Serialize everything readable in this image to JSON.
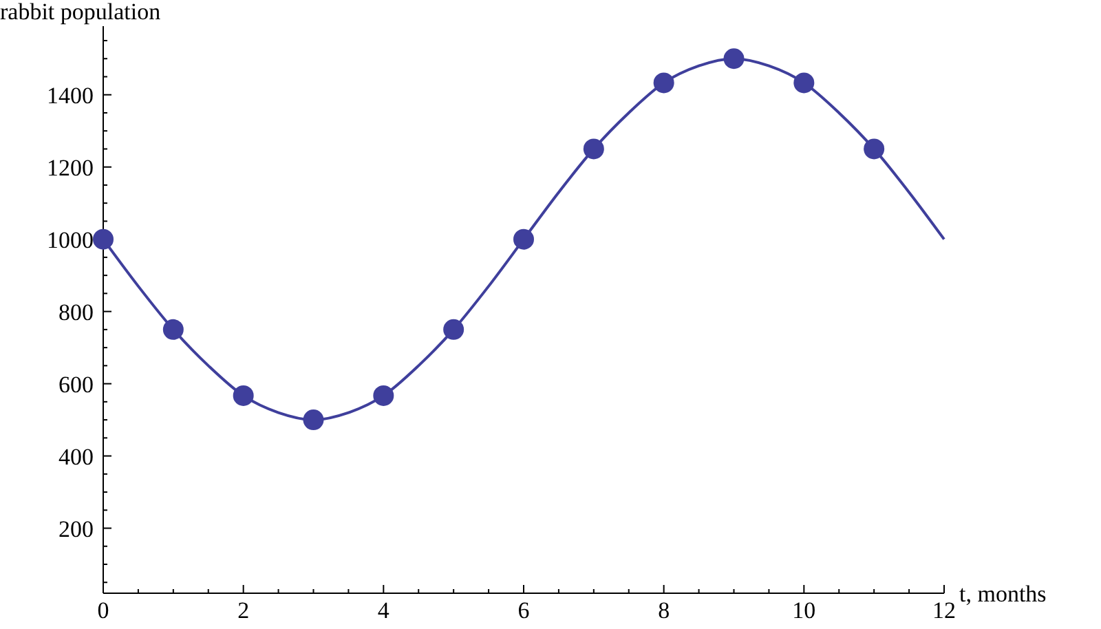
{
  "chart_data": {
    "type": "scatter",
    "xlabel": "t, months",
    "ylabel": "rabbit population",
    "xlim": [
      0,
      12
    ],
    "ylim": [
      20,
      1590
    ],
    "xticks": [
      0,
      {
        "value": 0.5,
        "label": null
      },
      {
        "value": 1,
        "label": null
      },
      {
        "value": 1.5,
        "label": null
      },
      2,
      {
        "value": 2.5,
        "label": null
      },
      {
        "value": 3,
        "label": null
      },
      {
        "value": 3.5,
        "label": null
      },
      4,
      {
        "value": 4.5,
        "label": null
      },
      {
        "value": 5,
        "label": null
      },
      {
        "value": 5.5,
        "label": null
      },
      6,
      {
        "value": 6.5,
        "label": null
      },
      {
        "value": 7,
        "label": null
      },
      {
        "value": 7.5,
        "label": null
      },
      8,
      {
        "value": 8.5,
        "label": null
      },
      {
        "value": 9,
        "label": null
      },
      {
        "value": 9.5,
        "label": null
      },
      10,
      {
        "value": 10.5,
        "label": null
      },
      {
        "value": 11,
        "label": null
      },
      {
        "value": 11.5,
        "label": null
      },
      12
    ],
    "yticks": [
      {
        "value": 50,
        "label": null
      },
      {
        "value": 100,
        "label": null
      },
      {
        "value": 150,
        "label": null
      },
      200,
      {
        "value": 250,
        "label": null
      },
      {
        "value": 300,
        "label": null
      },
      {
        "value": 350,
        "label": null
      },
      400,
      {
        "value": 450,
        "label": null
      },
      {
        "value": 500,
        "label": null
      },
      {
        "value": 550,
        "label": null
      },
      600,
      {
        "value": 650,
        "label": null
      },
      {
        "value": 700,
        "label": null
      },
      {
        "value": 750,
        "label": null
      },
      800,
      {
        "value": 850,
        "label": null
      },
      {
        "value": 900,
        "label": null
      },
      {
        "value": 950,
        "label": null
      },
      1000,
      {
        "value": 1050,
        "label": null
      },
      {
        "value": 1100,
        "label": null
      },
      {
        "value": 1150,
        "label": null
      },
      1200,
      {
        "value": 1250,
        "label": null
      },
      {
        "value": 1300,
        "label": null
      },
      {
        "value": 1350,
        "label": null
      },
      1400,
      {
        "value": 1450,
        "label": null
      },
      {
        "value": 1500,
        "label": null
      },
      {
        "value": 1550,
        "label": null
      }
    ],
    "series": [
      {
        "type": "line",
        "color": "#3f3f9c",
        "marker": "none",
        "x": [
          0,
          0.5,
          1,
          1.5,
          2,
          2.5,
          3,
          3.5,
          4,
          4.5,
          5,
          5.5,
          6,
          6.5,
          7,
          7.5,
          8,
          8.5,
          9,
          9.5,
          10,
          10.5,
          11,
          11.5,
          12
        ],
        "values": [
          1000,
          870,
          750,
          650,
          567,
          520,
          500,
          520,
          567,
          650,
          750,
          870,
          1000,
          1130,
          1250,
          1350,
          1433,
          1480,
          1500,
          1480,
          1433,
          1350,
          1250,
          1130,
          1000
        ]
      },
      {
        "color": "#3f3f9c",
        "marker": "circle",
        "x": [
          0,
          1,
          2,
          3,
          4,
          5,
          6,
          7,
          8,
          9,
          10,
          11
        ],
        "values": [
          1000,
          750,
          567,
          500,
          567,
          750,
          1000,
          1250,
          1433,
          1500,
          1433,
          1250
        ]
      }
    ]
  }
}
